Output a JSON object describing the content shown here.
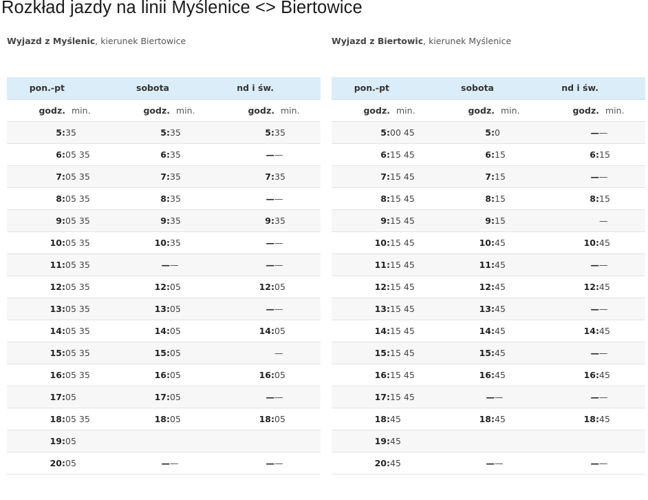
{
  "page_title": "Rozkład jazdy na linii Myślenice <> Biertowice",
  "left": {
    "subtitle_bold": "Wyjazd z Myślenic",
    "subtitle_rest": ", kierunek Biertowice",
    "days": [
      "pon.-pt",
      "sobota",
      "nd i św."
    ],
    "unit_hour": "godz.",
    "unit_min": "min.",
    "rows": [
      [
        "5:",
        "35",
        "5:",
        "35",
        "5:",
        "35"
      ],
      [
        "6:",
        "05 35",
        "6:",
        "35",
        "—",
        "—"
      ],
      [
        "7:",
        "05 35",
        "7:",
        "35",
        "7:",
        "35"
      ],
      [
        "8:",
        "05 35",
        "8:",
        "35",
        "—",
        "—"
      ],
      [
        "9:",
        "05 35",
        "9:",
        "35",
        "9:",
        "35"
      ],
      [
        "10:",
        "05 35",
        "10:",
        "35",
        "—",
        "—"
      ],
      [
        "11:",
        "05 35",
        "—",
        "—",
        "—",
        "—"
      ],
      [
        "12:",
        "05 35",
        "12:",
        "05",
        "12:",
        "05"
      ],
      [
        "13:",
        "05 35",
        "13:",
        "05",
        "—",
        "—"
      ],
      [
        "14:",
        "05 35",
        "14:",
        "05",
        "14:",
        "05"
      ],
      [
        "15:",
        "05 35",
        "15:",
        "05",
        "",
        "—"
      ],
      [
        "16:",
        "05 35",
        "16:",
        "05",
        "16:",
        "05"
      ],
      [
        "17:",
        "05",
        "17:",
        "05",
        "—",
        "—"
      ],
      [
        "18:",
        "05 35",
        "18:",
        "05",
        "18:",
        "05"
      ],
      [
        "19:",
        "05",
        "",
        "",
        "",
        ""
      ],
      [
        "20:",
        "05",
        "—",
        "—",
        "—",
        "—"
      ]
    ]
  },
  "right": {
    "subtitle_bold": "Wyjazd z Biertowic",
    "subtitle_rest": ", kierunek Myślenice",
    "days": [
      "pon.-pt",
      "sobota",
      "nd i św."
    ],
    "unit_hour": "godz.",
    "unit_min": "min.",
    "rows": [
      [
        "5:",
        "00 45",
        "5:",
        "0",
        "—",
        "—"
      ],
      [
        "6:",
        "15 45",
        "6:",
        "15",
        "6:",
        "15"
      ],
      [
        "7:",
        "15 45",
        "7:",
        "15",
        "—",
        "—"
      ],
      [
        "8:",
        "15 45",
        "8:",
        "15",
        "8:",
        "15"
      ],
      [
        "9:",
        "15 45",
        "9:",
        "15",
        "",
        "—"
      ],
      [
        "10:",
        "15 45",
        "10:",
        "45",
        "10:",
        "45"
      ],
      [
        "11:",
        "15 45",
        "11:",
        "45",
        "—",
        "—"
      ],
      [
        "12:",
        "15 45",
        "12:",
        "45",
        "12:",
        "45"
      ],
      [
        "13:",
        "15 45",
        "13:",
        "45",
        "—",
        "—"
      ],
      [
        "14:",
        "15 45",
        "14:",
        "45",
        "14:",
        "45"
      ],
      [
        "15:",
        "15 45",
        "15:",
        "45",
        "—",
        "—"
      ],
      [
        "16:",
        "15 45",
        "16:",
        "45",
        "16:",
        "45"
      ],
      [
        "17:",
        "15 45",
        "—",
        "—",
        "—",
        "—"
      ],
      [
        "18:",
        "45",
        "18:",
        "45",
        "18:",
        "45"
      ],
      [
        "19:",
        "45",
        "",
        "",
        "",
        ""
      ],
      [
        "20:",
        "45",
        "—",
        "—",
        "—",
        "—"
      ]
    ]
  }
}
